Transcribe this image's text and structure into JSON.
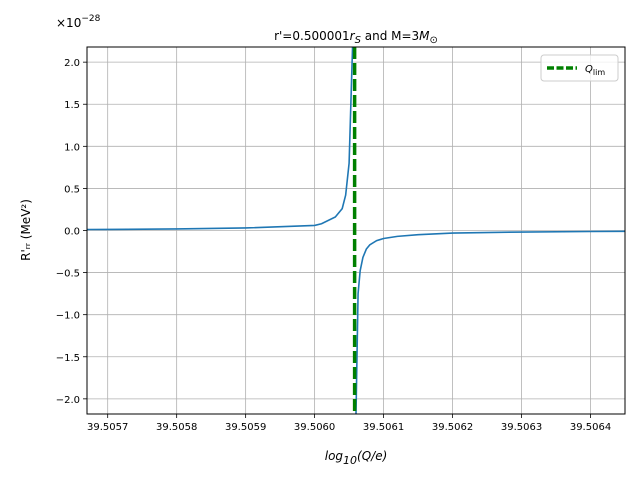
{
  "chart_data": {
    "type": "line",
    "title": {
      "prefix": "r'=0.500001",
      "r_symbol": "r",
      "r_sub": "S",
      "middle": " and M=3",
      "m_symbol": "M",
      "m_sub": "⊙"
    },
    "xlabel": {
      "prefix": "log",
      "sub": "10",
      "suffix": "(Q/e)"
    },
    "ylabel": "R'ᵣᵣ (MeV²)",
    "y_offset_label": {
      "base": "×10",
      "exp": "−28"
    },
    "xlim": [
      39.50567,
      39.50645
    ],
    "ylim": [
      -2.18,
      2.18
    ],
    "xticks": [
      39.5057,
      39.5058,
      39.5059,
      39.506,
      39.5061,
      39.5062,
      39.5063,
      39.5064
    ],
    "xtick_labels": [
      "39.5057",
      "39.5058",
      "39.5059",
      "39.5060",
      "39.5061",
      "39.5062",
      "39.5063",
      "39.5064"
    ],
    "yticks": [
      -2.0,
      -1.5,
      -1.0,
      -0.5,
      0.0,
      0.5,
      1.0,
      1.5,
      2.0
    ],
    "ytick_labels": [
      "−2.0",
      "−1.5",
      "−1.0",
      "−0.5",
      "0.0",
      "0.5",
      "1.0",
      "1.5",
      "2.0"
    ],
    "grid": true,
    "legend_position": "top-right",
    "series": [
      {
        "role": "curve",
        "color": "#1f77b4",
        "x": [
          39.50567,
          39.5057,
          39.5058,
          39.5059,
          39.506,
          39.50601,
          39.50603,
          39.50604,
          39.506045,
          39.50605,
          39.506055,
          39.50606,
          39.506063,
          39.506066,
          39.50607,
          39.506075,
          39.50608,
          39.50609,
          39.5061,
          39.50612,
          39.50615,
          39.5062,
          39.5063,
          39.5064,
          39.50645
        ],
        "y": [
          0.012,
          0.013,
          0.018,
          0.03,
          0.06,
          0.08,
          0.16,
          0.26,
          0.42,
          0.8,
          2.18,
          -2.18,
          -0.75,
          -0.48,
          -0.32,
          -0.22,
          -0.17,
          -0.12,
          -0.095,
          -0.07,
          -0.05,
          -0.03,
          -0.018,
          -0.012,
          -0.01
        ]
      },
      {
        "role": "limit",
        "name": "Q",
        "name_sub": "lim",
        "color": "#008000",
        "x_value": 39.506058
      }
    ]
  }
}
